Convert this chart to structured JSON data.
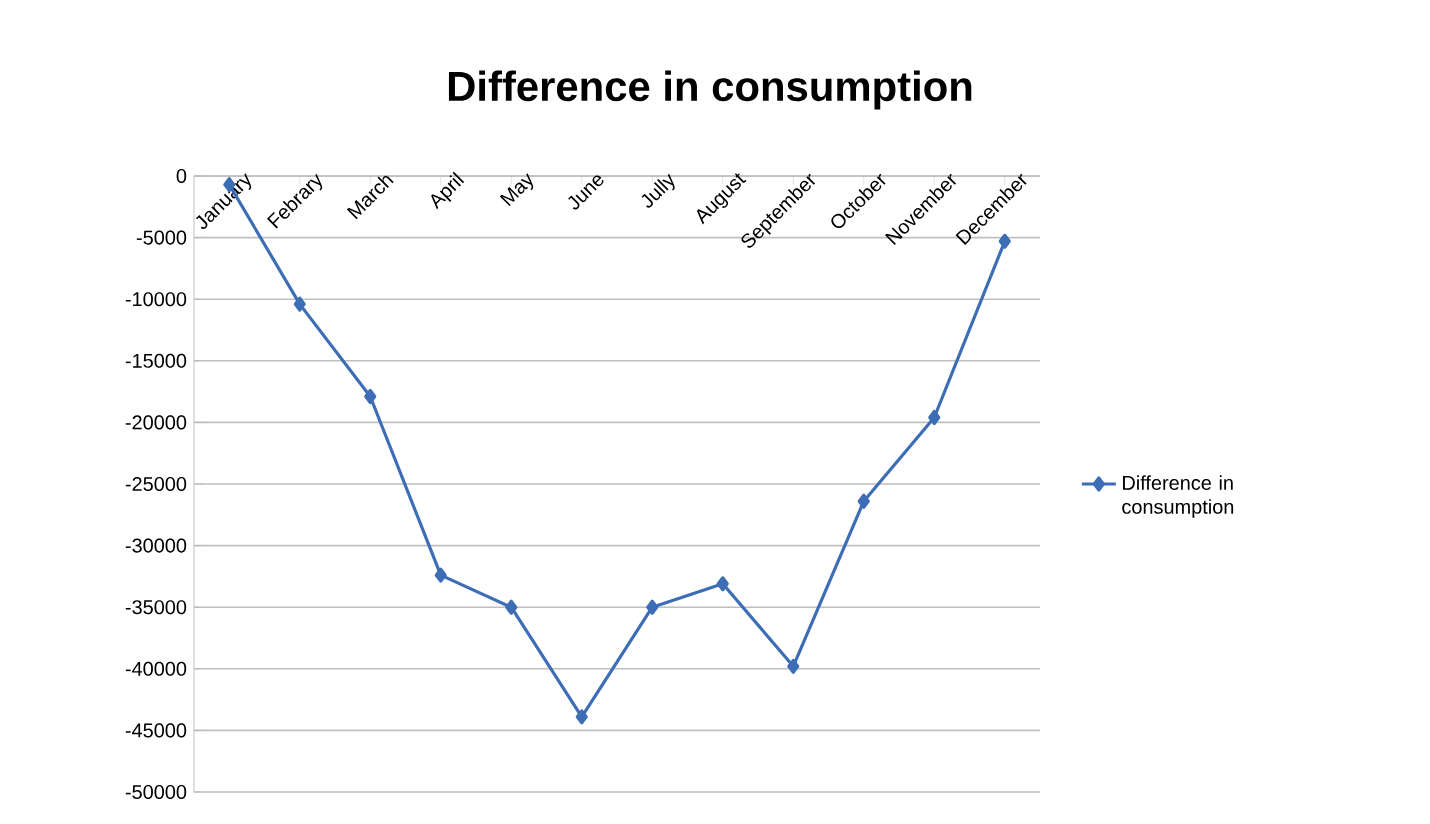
{
  "chart_data": {
    "type": "line",
    "title": "Difference in consumption",
    "categories": [
      "January",
      "Febrary",
      "March",
      "April",
      "May",
      "June",
      "Jully",
      "August",
      "September",
      "October",
      "November",
      "December"
    ],
    "series": [
      {
        "name": "Difference in consumption",
        "color": "#3d6db5",
        "values": [
          -700,
          -10400,
          -17900,
          -32400,
          -35000,
          -43900,
          -35000,
          -33100,
          -39800,
          -26400,
          -19600,
          -5300
        ]
      }
    ],
    "ylim": [
      -50000,
      0
    ],
    "yticks": [
      -50000,
      -45000,
      -40000,
      -35000,
      -30000,
      -25000,
      -20000,
      -15000,
      -10000,
      -5000,
      0
    ],
    "grid": "y",
    "legend": "right",
    "marker": "diamond",
    "line_style": "solid"
  }
}
